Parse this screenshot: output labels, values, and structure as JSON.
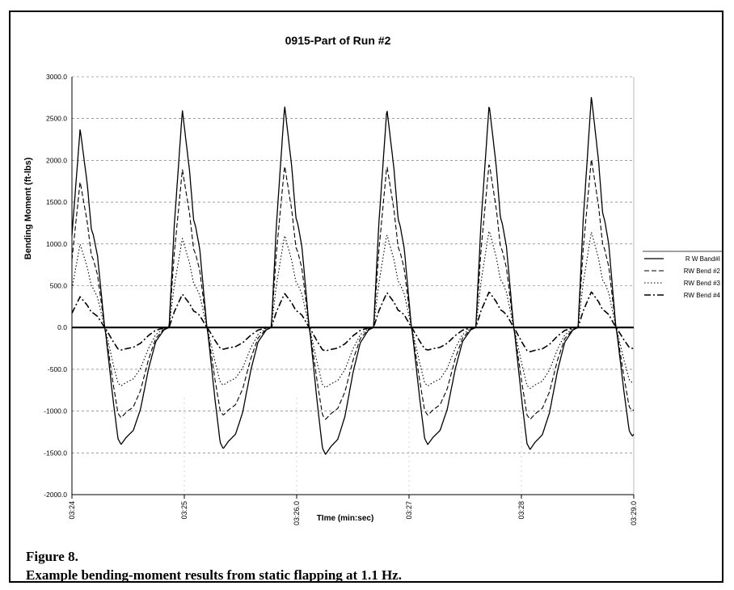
{
  "figure": {
    "number_label": "Figure 8.",
    "caption": "Example bending-moment results from static flapping at 1.1 Hz."
  },
  "chart_data": {
    "type": "line",
    "title": "0915-Part of Run #2",
    "xlabel": "TIme (min:sec)",
    "ylabel": "Bending Moment (ft-lbs)",
    "ylim": [
      -2000,
      3000
    ],
    "yticks": [
      -2000,
      -1500,
      -1000,
      -500,
      0,
      500,
      1000,
      1500,
      2000,
      2500,
      3000
    ],
    "ytick_labels": [
      "-2000.0",
      "-1500.0",
      "-1000.0",
      "-500.0",
      "0.0",
      "500.0",
      "1000.0",
      "1500.0",
      "2000.0",
      "2500.0",
      "3000.0"
    ],
    "xlim": [
      0,
      5
    ],
    "xticks": [
      0,
      1,
      2,
      3,
      4,
      5
    ],
    "xtick_labels": [
      "03:24",
      "03:25",
      "03:26.0",
      "03:27",
      "03:28",
      "03:29.0"
    ],
    "grid": "horizontal dashed",
    "legend_position": "right",
    "legend": [
      "R W Band#I",
      "RW Bend #2",
      "RW Bend #3",
      "RW Bend #4"
    ],
    "period": 0.91,
    "series": [
      {
        "name": "R W Band#I",
        "style": "solid",
        "cycle_shape": {
          "phase": [
            0.0,
            0.05,
            0.13,
            0.2,
            0.24,
            0.26,
            0.3,
            0.38,
            0.45,
            0.5,
            0.53,
            0.58,
            0.65,
            0.72,
            0.8,
            0.87,
            0.95,
            1.0
          ],
          "value": [
            0.0,
            0.45,
            0.97,
            0.7,
            0.48,
            0.45,
            0.35,
            -0.05,
            -0.6,
            -0.95,
            -1.0,
            -0.94,
            -0.88,
            -0.7,
            -0.35,
            -0.12,
            -0.02,
            0.0
          ]
        },
        "peaks": [
          2450,
          2680,
          2740,
          2700,
          2750,
          2850
        ],
        "troughs": [
          -1400,
          -1450,
          -1520,
          -1400,
          -1460,
          -1300
        ]
      },
      {
        "name": "RW Bend #2",
        "style": "dashed",
        "cycle_shape": {
          "phase": [
            0.0,
            0.05,
            0.13,
            0.2,
            0.24,
            0.26,
            0.3,
            0.38,
            0.45,
            0.5,
            0.53,
            0.58,
            0.65,
            0.72,
            0.8,
            0.87,
            0.95,
            1.0
          ],
          "value": [
            0.0,
            0.45,
            0.97,
            0.7,
            0.48,
            0.45,
            0.35,
            -0.05,
            -0.6,
            -0.95,
            -1.0,
            -0.94,
            -0.88,
            -0.7,
            -0.35,
            -0.12,
            -0.02,
            0.0
          ]
        },
        "peaks": [
          1800,
          1950,
          2000,
          2000,
          2030,
          2080
        ],
        "troughs": [
          -1080,
          -1050,
          -1100,
          -1050,
          -1100,
          -1000
        ]
      },
      {
        "name": "RW Bend #3",
        "style": "dotted",
        "cycle_shape": {
          "phase": [
            0.0,
            0.05,
            0.13,
            0.2,
            0.24,
            0.26,
            0.3,
            0.38,
            0.45,
            0.5,
            0.53,
            0.58,
            0.65,
            0.72,
            0.8,
            0.87,
            0.95,
            1.0
          ],
          "value": [
            0.0,
            0.45,
            0.97,
            0.7,
            0.48,
            0.45,
            0.35,
            -0.05,
            -0.6,
            -0.95,
            -1.0,
            -0.94,
            -0.88,
            -0.7,
            -0.35,
            -0.12,
            -0.02,
            0.0
          ]
        },
        "peaks": [
          1030,
          1100,
          1140,
          1150,
          1200,
          1180
        ],
        "troughs": [
          -700,
          -690,
          -720,
          -700,
          -730,
          -660
        ]
      },
      {
        "name": "RW Bend #4",
        "style": "dash-dot",
        "cycle_shape": {
          "phase": [
            0.0,
            0.05,
            0.13,
            0.2,
            0.24,
            0.26,
            0.3,
            0.38,
            0.45,
            0.5,
            0.53,
            0.58,
            0.65,
            0.72,
            0.8,
            0.87,
            0.95,
            1.0
          ],
          "value": [
            0.0,
            0.45,
            0.97,
            0.7,
            0.48,
            0.45,
            0.35,
            -0.05,
            -0.6,
            -0.95,
            -1.0,
            -0.94,
            -0.88,
            -0.7,
            -0.35,
            -0.12,
            -0.02,
            0.0
          ]
        },
        "peaks": [
          380,
          410,
          420,
          430,
          440,
          440
        ],
        "troughs": [
          -270,
          -260,
          -280,
          -270,
          -290,
          -250
        ]
      }
    ]
  }
}
